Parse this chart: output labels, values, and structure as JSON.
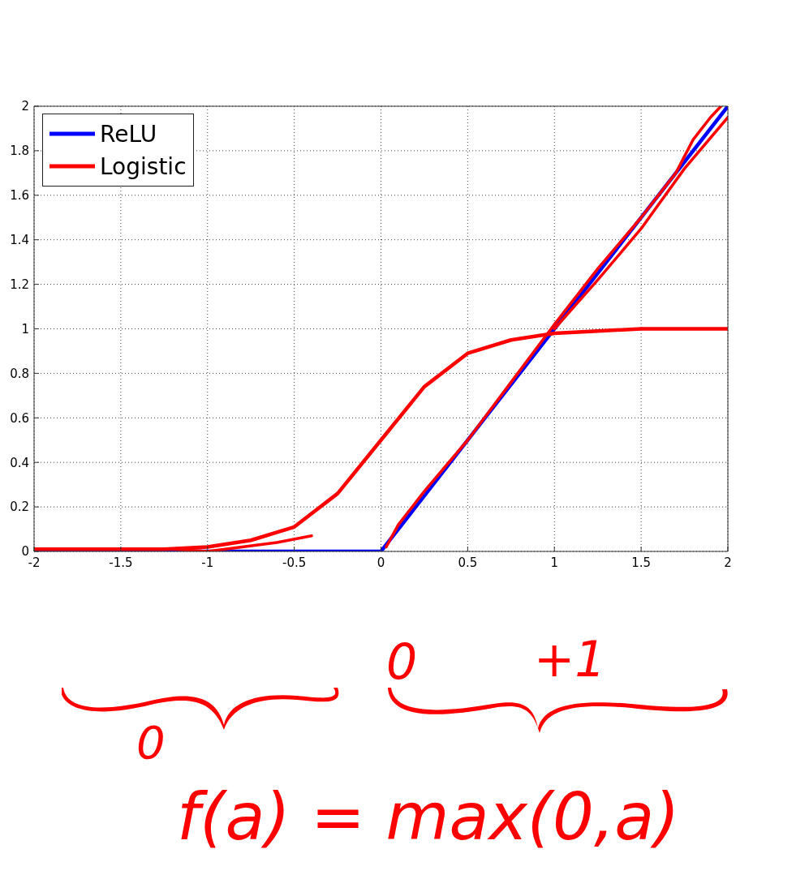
{
  "chart_data": {
    "type": "line",
    "xlim": [
      -2,
      2
    ],
    "xticks": [
      -2,
      -1.5,
      -1,
      -0.5,
      0,
      0.5,
      1,
      1.5,
      2
    ],
    "ylim": [
      0,
      2
    ],
    "yticks": [
      0,
      0.2,
      0.4,
      0.6,
      0.8,
      1,
      1.2,
      1.4,
      1.6,
      1.8,
      2
    ],
    "grid": true,
    "legend": "top left",
    "line_style": "solid",
    "marker": "none",
    "series": [
      {
        "name": "ReLU",
        "color": "#0000ff",
        "x": [
          -2,
          0,
          2
        ],
        "values": [
          0,
          0,
          2
        ]
      },
      {
        "name": "Logistic",
        "color": "#ff0000",
        "x": [
          -2,
          -1.5,
          -1.25,
          -1,
          -0.75,
          -0.5,
          -0.25,
          0,
          0.25,
          0.5,
          0.75,
          1,
          1.25,
          1.5,
          2
        ],
        "values": [
          0.01,
          0.01,
          0.01,
          0.02,
          0.05,
          0.11,
          0.26,
          0.5,
          0.74,
          0.89,
          0.95,
          0.98,
          0.99,
          1,
          1
        ]
      },
      {
        "color": "#ff0000",
        "x": [
          0.03,
          0.1,
          0.25,
          0.5,
          0.75,
          1,
          1.25,
          1.5,
          1.7,
          1.8,
          1.9,
          1.96
        ],
        "values": [
          0.02,
          0.12,
          0.27,
          0.5,
          0.76,
          1.02,
          1.27,
          1.5,
          1.7,
          1.85,
          1.95,
          2
        ]
      },
      {
        "color": "#ff0000",
        "x": [
          1,
          1.25,
          1.5,
          1.75,
          2
        ],
        "values": [
          1,
          1.22,
          1.45,
          1.72,
          1.95
        ]
      },
      {
        "color": "#ff0000",
        "x": [
          -2,
          -1.5,
          -1.2,
          -1,
          -0.8,
          -0.6,
          -0.4
        ],
        "values": [
          0.01,
          0.01,
          0.01,
          0,
          0.02,
          0.04,
          0.07
        ]
      }
    ],
    "annotations": [
      "0",
      "+1",
      "0",
      "f(a) = max(0,a)"
    ]
  }
}
